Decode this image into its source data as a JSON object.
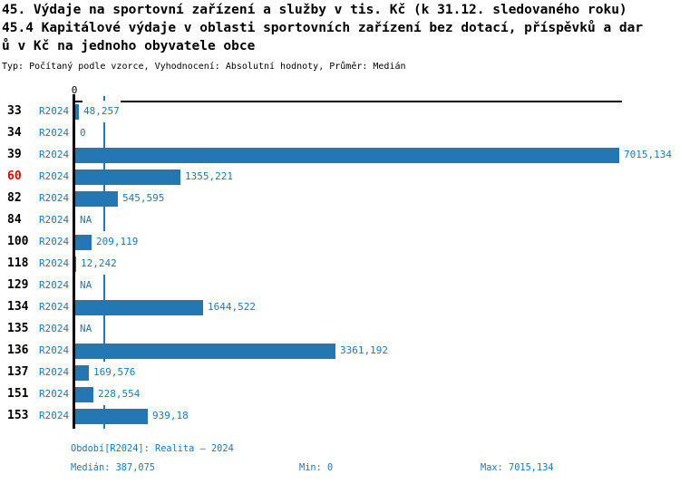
{
  "title": {
    "line1": "45. Výdaje na sportovní zařízení a služby v tis. Kč (k 31.12. sledovaného roku)",
    "line2": "45.4 Kapitálové výdaje v oblasti sportovních zařízení bez dotací, příspěvků a dar",
    "line3": "ů v Kč na jednoho obyvatele obce",
    "meta": "Typ: Počítaný podle vzorce, Vyhodnocení: Absolutní hodnoty, Průměr: Medián"
  },
  "colors": {
    "accent_blue": "#2277b4",
    "highlight_red": "#e60000",
    "axis_black": "#000000",
    "background": "#ffffff"
  },
  "chart_data": {
    "type": "bar",
    "orientation": "horizontal",
    "axis_zero_label": "0",
    "period_label": "R2024",
    "xlim": [
      0,
      7015.134
    ],
    "median_value": 387.075,
    "legend_position": "none",
    "grid": false,
    "categories": [
      "33",
      "34",
      "39",
      "60",
      "82",
      "84",
      "100",
      "118",
      "129",
      "134",
      "135",
      "136",
      "137",
      "151",
      "153"
    ],
    "rows": [
      {
        "id": "33",
        "value": 48.257,
        "label": "48,257",
        "red": false
      },
      {
        "id": "34",
        "value": 0,
        "label": "0",
        "red": false
      },
      {
        "id": "39",
        "value": 7015.134,
        "label": "7015,134",
        "red": false
      },
      {
        "id": "60",
        "value": 1355.221,
        "label": "1355,221",
        "red": true
      },
      {
        "id": "82",
        "value": 545.595,
        "label": "545,595",
        "red": false
      },
      {
        "id": "84",
        "value": null,
        "label": "NA",
        "red": false
      },
      {
        "id": "100",
        "value": 209.119,
        "label": "209,119",
        "red": false
      },
      {
        "id": "118",
        "value": 12.242,
        "label": "12,242",
        "red": false
      },
      {
        "id": "129",
        "value": null,
        "label": "NA",
        "red": false
      },
      {
        "id": "134",
        "value": 1644.522,
        "label": "1644,522",
        "red": false
      },
      {
        "id": "135",
        "value": null,
        "label": "NA",
        "red": false
      },
      {
        "id": "136",
        "value": 3361.192,
        "label": "3361,192",
        "red": false
      },
      {
        "id": "137",
        "value": 169.576,
        "label": "169,576",
        "red": false
      },
      {
        "id": "151",
        "value": 228.554,
        "label": "228,554",
        "red": false
      },
      {
        "id": "153",
        "value": 939.18,
        "label": "939,18",
        "red": false
      }
    ]
  },
  "footer": {
    "period": "Období[R2024]: Realita – 2024",
    "median": "Medián: 387,075",
    "min": "Min: 0",
    "max": "Max: 7015,134"
  }
}
